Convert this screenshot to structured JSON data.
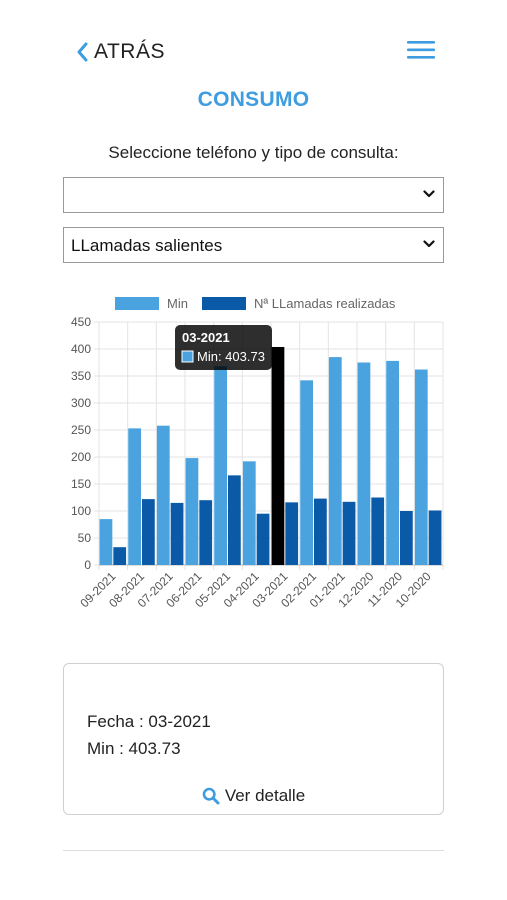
{
  "header": {
    "back_label": "ATRÁS",
    "back_icon": "chevron-left-icon",
    "menu_icon": "hamburger-menu-icon",
    "accent": "#3d9de0"
  },
  "page": {
    "title": "CONSUMO",
    "subtitle": "Seleccione teléfono y tipo de consulta:"
  },
  "selects": {
    "phone_value": "",
    "type_value": "LLamadas salientes"
  },
  "chart_data": {
    "type": "bar",
    "categories": [
      "09-2021",
      "08-2021",
      "07-2021",
      "06-2021",
      "05-2021",
      "04-2021",
      "03-2021",
      "02-2021",
      "01-2021",
      "12-2020",
      "11-2020",
      "10-2020"
    ],
    "series": [
      {
        "name": "Min",
        "color": "#4aa3df",
        "values": [
          85,
          253,
          258,
          198,
          368,
          192,
          403.73,
          342,
          385,
          375,
          378,
          362
        ]
      },
      {
        "name": "Nª LLamadas realizadas",
        "color": "#0b5aa8",
        "values": [
          33,
          122,
          115,
          120,
          166,
          95,
          116,
          123,
          117,
          125,
          100,
          101
        ]
      }
    ],
    "highlight_index": 6,
    "highlight_color": "#000000",
    "yticks": [
      0,
      50,
      100,
      150,
      200,
      250,
      300,
      350,
      400,
      450
    ],
    "ylim": [
      0,
      450
    ],
    "grid": true,
    "legend": "top",
    "tooltip": {
      "title": "03-2021",
      "label": "Min: 403.73"
    }
  },
  "detail_card": {
    "fecha": "Fecha : 03-2021",
    "min": "Min : 403.73",
    "link_label": "Ver detalle",
    "link_icon": "search-icon"
  }
}
